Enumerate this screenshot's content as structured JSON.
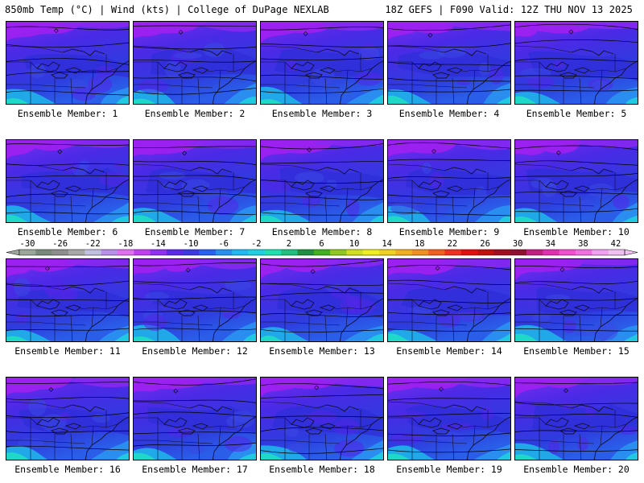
{
  "header": {
    "title_left": "850mb Temp (°C) | Wind (kts) | College of DuPage NEXLAB",
    "title_right": "18Z GEFS | F090 Valid: 12Z THU NOV 13 2025"
  },
  "panels": [
    {
      "caption": "Ensemble Member: 1"
    },
    {
      "caption": "Ensemble Member: 2"
    },
    {
      "caption": "Ensemble Member: 3"
    },
    {
      "caption": "Ensemble Member: 4"
    },
    {
      "caption": "Ensemble Member: 5"
    },
    {
      "caption": "Ensemble Member: 6"
    },
    {
      "caption": "Ensemble Member: 7"
    },
    {
      "caption": "Ensemble Member: 8"
    },
    {
      "caption": "Ensemble Member: 9"
    },
    {
      "caption": "Ensemble Member: 10"
    },
    {
      "caption": "Ensemble Member: 11"
    },
    {
      "caption": "Ensemble Member: 12"
    },
    {
      "caption": "Ensemble Member: 13"
    },
    {
      "caption": "Ensemble Member: 14"
    },
    {
      "caption": "Ensemble Member: 15"
    },
    {
      "caption": "Ensemble Member: 16"
    },
    {
      "caption": "Ensemble Member: 17"
    },
    {
      "caption": "Ensemble Member: 18"
    },
    {
      "caption": "Ensemble Member: 19"
    },
    {
      "caption": "Ensemble Member: 20"
    }
  ],
  "colorbar": {
    "labels": [
      "-30",
      "-26",
      "-22",
      "-18",
      "-14",
      "-10",
      "-6",
      "-2",
      "2",
      "6",
      "10",
      "14",
      "18",
      "22",
      "26",
      "30",
      "34",
      "38",
      "42"
    ],
    "colors": [
      "#9aa79a",
      "#7a8a7a",
      "#8e8e8e",
      "#a8a8a8",
      "#c0c0e0",
      "#b890e8",
      "#e070f0",
      "#c040f0",
      "#9030f0",
      "#5a2ae8",
      "#3c3ae0",
      "#2a60f0",
      "#2a90f0",
      "#20b8f0",
      "#20d0e0",
      "#20e0b0",
      "#20c080",
      "#209040",
      "#40b020",
      "#90c820",
      "#d0e020",
      "#f0f020",
      "#f0d020",
      "#f0b020",
      "#f09020",
      "#f06020",
      "#f03020",
      "#e01010",
      "#c01010",
      "#a01020",
      "#901030",
      "#c02080",
      "#e030b0",
      "#f050d0",
      "#f070e0",
      "#f0a0f0",
      "#f0c0f0"
    ]
  }
}
